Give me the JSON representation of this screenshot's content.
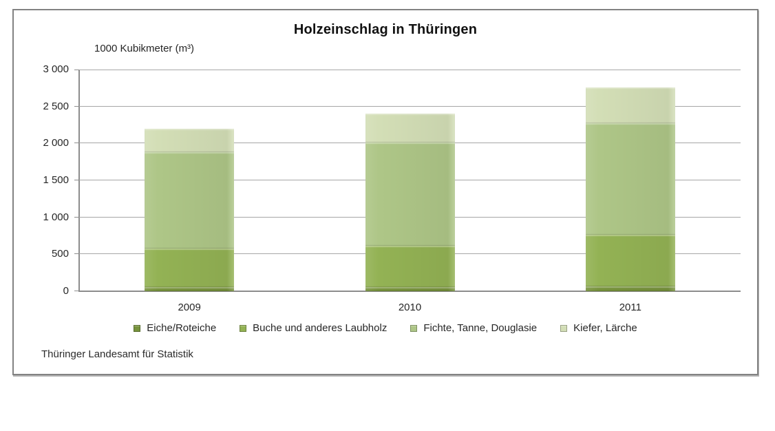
{
  "chart": {
    "title": "Holzeinschlag in Thüringen",
    "unit_label": "1000 Kubikmeter (m³)",
    "source": "Thüringer Landesamt für Statistik"
  },
  "chart_data": {
    "type": "bar",
    "stacked": true,
    "title": "Holzeinschlag in Thüringen",
    "xlabel": "",
    "ylabel": "1000 Kubikmeter (m³)",
    "categories": [
      "2009",
      "2010",
      "2011"
    ],
    "series": [
      {
        "name": "Eiche/Roteiche",
        "color": "#77933c",
        "values": [
          55,
          55,
          70
        ]
      },
      {
        "name": "Buche und anderes Laubholz",
        "color": "#93b254",
        "values": [
          520,
          560,
          695
        ]
      },
      {
        "name": "Fichte, Tanne, Douglasie",
        "color": "#aec687",
        "values": [
          1305,
          1395,
          1510
        ]
      },
      {
        "name": "Kiefer, Lärche",
        "color": "#d3deb6",
        "values": [
          320,
          390,
          480
        ]
      }
    ],
    "totals": [
      2200,
      2400,
      2755
    ],
    "ylim": [
      0,
      3000
    ],
    "ytick_interval": 500,
    "ytick_labels": [
      "0",
      "500",
      "1 000",
      "1 500",
      "2 000",
      "2 500",
      "3 000"
    ],
    "grid": true,
    "legend_position": "bottom",
    "axis_color": "#8c8c8c",
    "gridline_color": "#a6a6a6"
  }
}
